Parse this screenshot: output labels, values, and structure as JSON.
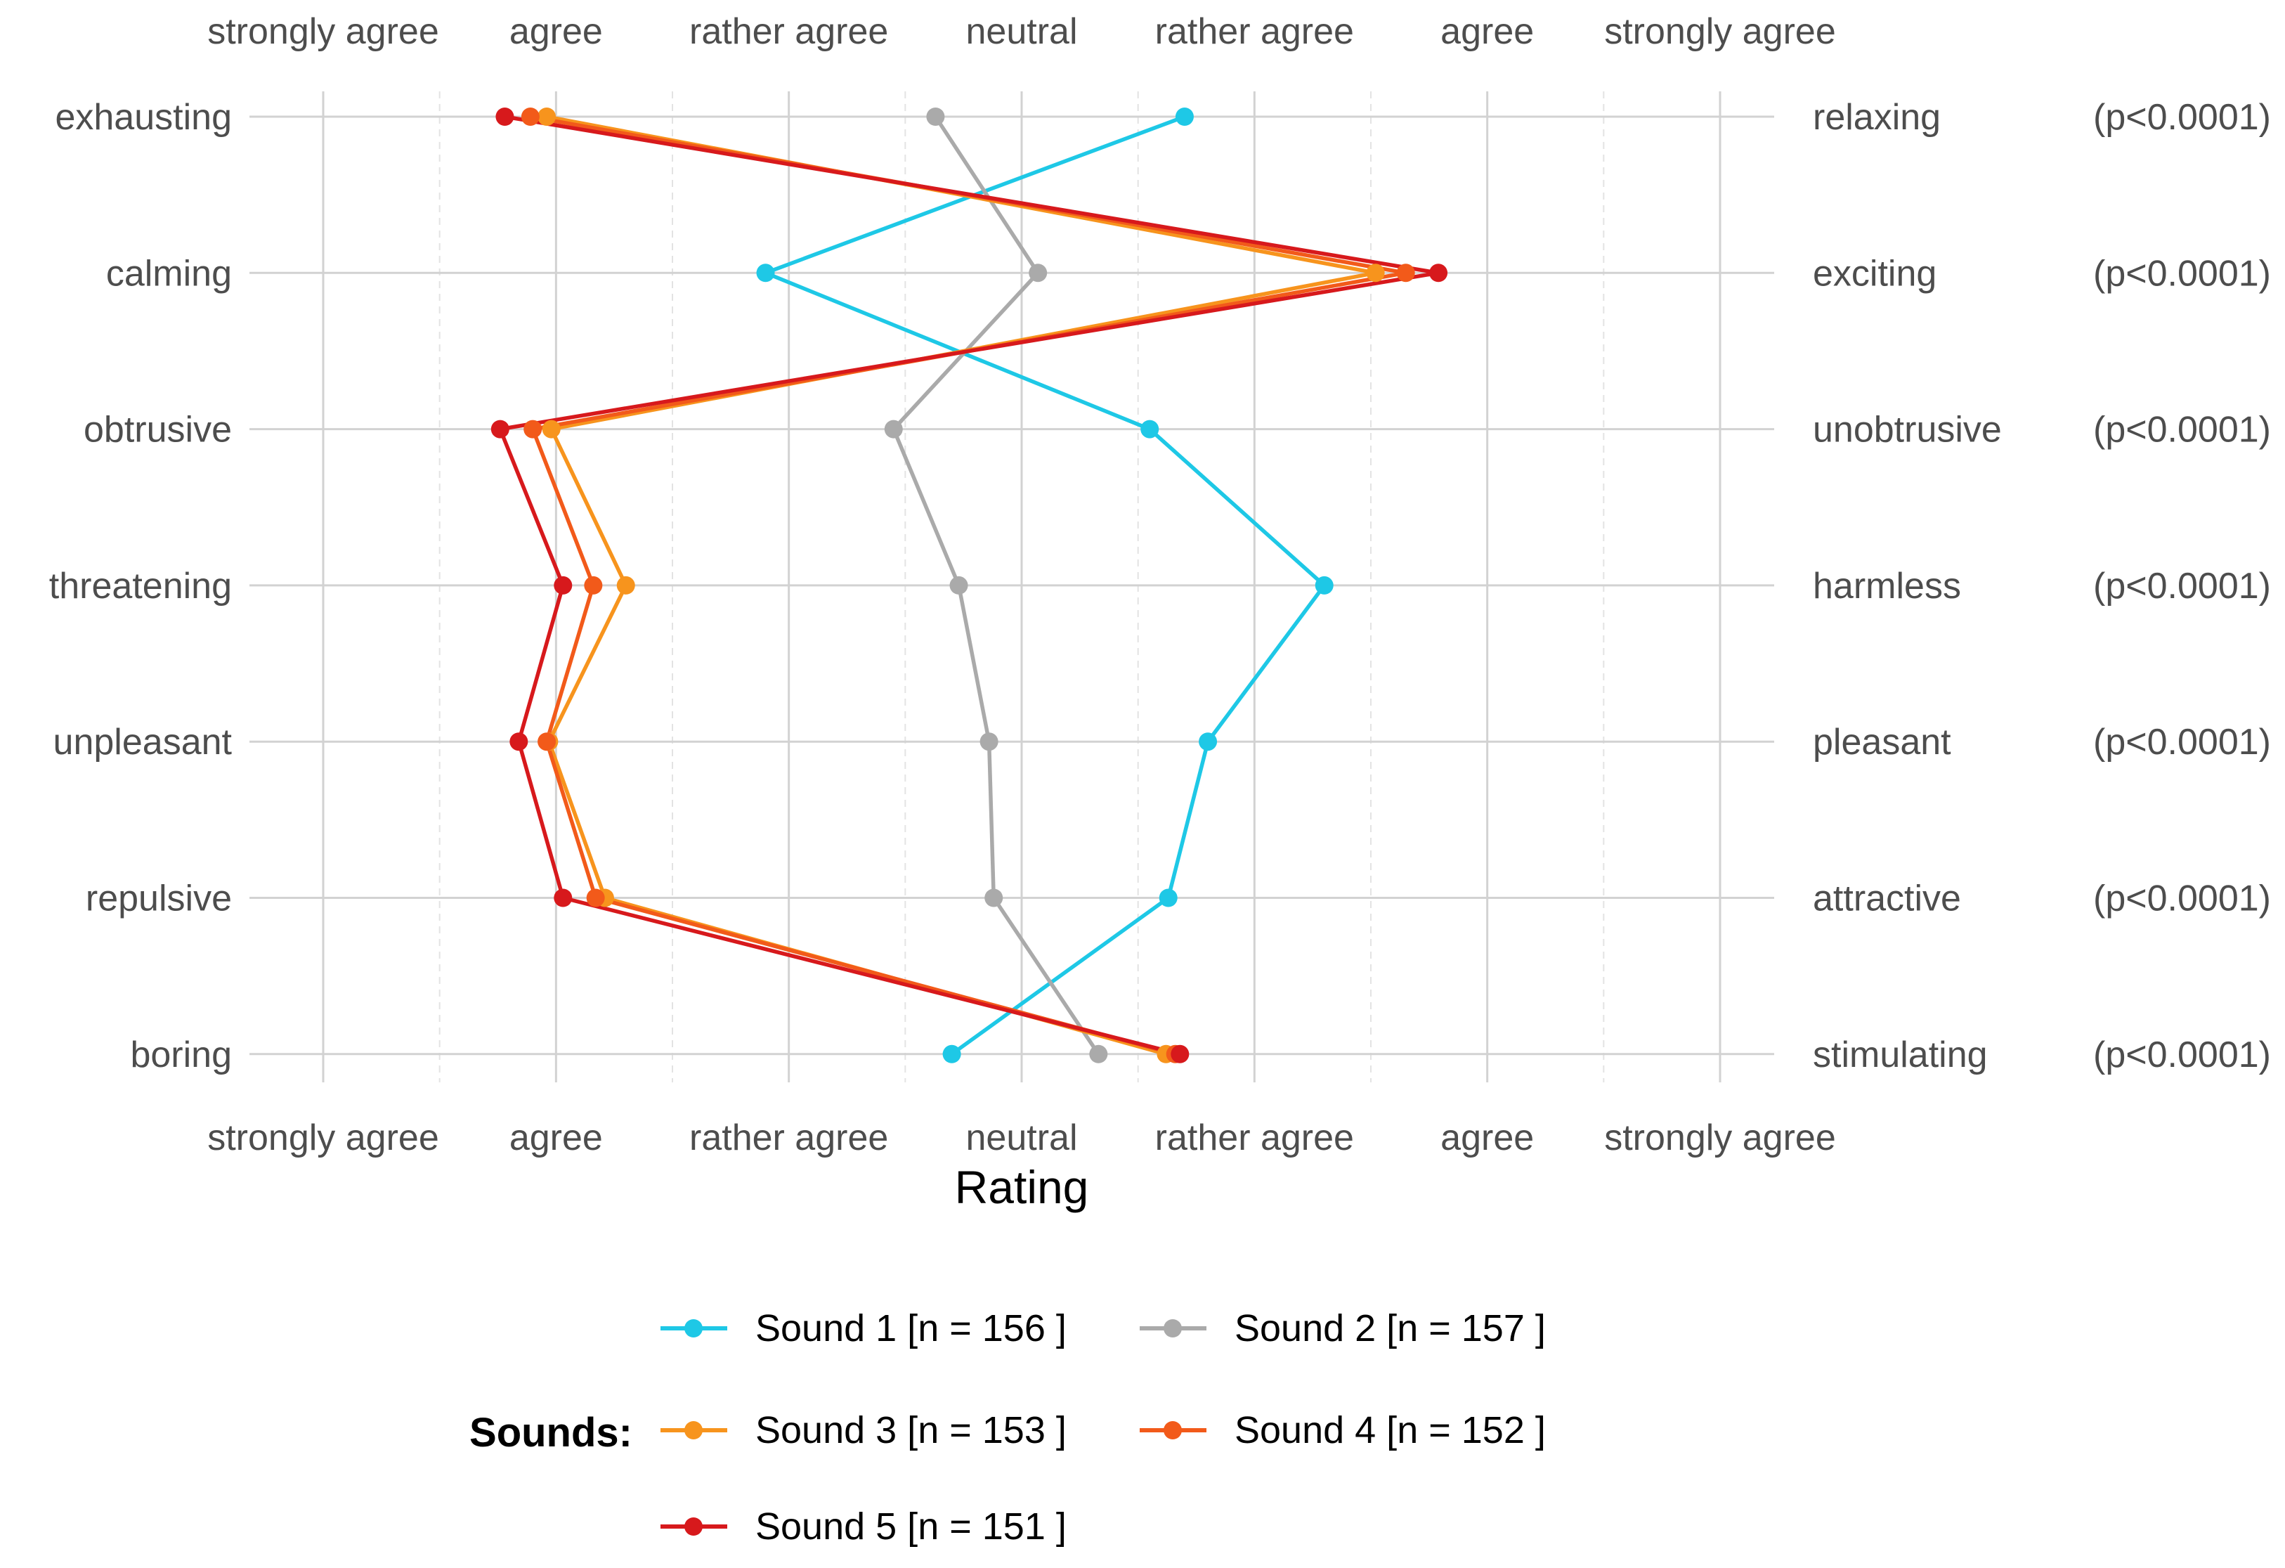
{
  "chart_data": {
    "type": "line",
    "xlabel": "Rating",
    "xlim": [
      -3.5,
      3.3
    ],
    "x_ticks": [
      -3,
      -2,
      -1,
      0,
      1,
      2,
      3
    ],
    "x_tick_labels": [
      "strongly agree",
      "agree",
      "rather agree",
      "neutral",
      "rather agree",
      "agree",
      "strongly agree"
    ],
    "categories": [
      "exhausting",
      "calming",
      "obtrusive",
      "threatening",
      "unpleasant",
      "repulsive",
      "boring"
    ],
    "right_labels": [
      {
        "label": "relaxing",
        "p": "(p<0.0001)"
      },
      {
        "label": "exciting",
        "p": "(p<0.0001)"
      },
      {
        "label": "unobtrusive",
        "p": "(p<0.0001)"
      },
      {
        "label": "harmless",
        "p": "(p<0.0001)"
      },
      {
        "label": "pleasant",
        "p": "(p<0.0001)"
      },
      {
        "label": "attractive",
        "p": "(p<0.0001)"
      },
      {
        "label": "stimulating",
        "p": "(p<0.0001)"
      }
    ],
    "series": [
      {
        "name": "Sound 1",
        "n": "[n =  156 ]",
        "color": "#1ec8e6",
        "values": [
          0.7,
          -1.1,
          0.55,
          1.3,
          0.8,
          0.63,
          -0.3
        ]
      },
      {
        "name": "Sound 2",
        "n": "[n =  157 ]",
        "color": "#aaaaaa",
        "values": [
          -0.37,
          0.07,
          -0.55,
          -0.27,
          -0.14,
          -0.12,
          0.33
        ]
      },
      {
        "name": "Sound 3",
        "n": "[n =  153 ]",
        "color": "#f7941d",
        "values": [
          -2.04,
          1.52,
          -2.02,
          -1.7,
          -2.03,
          -1.79,
          0.62
        ]
      },
      {
        "name": "Sound 4",
        "n": "[n =  152 ]",
        "color": "#f25a1a",
        "values": [
          -2.11,
          1.65,
          -2.1,
          -1.84,
          -2.04,
          -1.83,
          0.66
        ]
      },
      {
        "name": "Sound 5",
        "n": "[n =  151 ]",
        "color": "#d7191c",
        "values": [
          -2.22,
          1.79,
          -2.24,
          -1.97,
          -2.16,
          -1.97,
          0.68
        ]
      }
    ],
    "legend": {
      "title": "Sounds:",
      "position": "bottom"
    },
    "grid": true
  }
}
